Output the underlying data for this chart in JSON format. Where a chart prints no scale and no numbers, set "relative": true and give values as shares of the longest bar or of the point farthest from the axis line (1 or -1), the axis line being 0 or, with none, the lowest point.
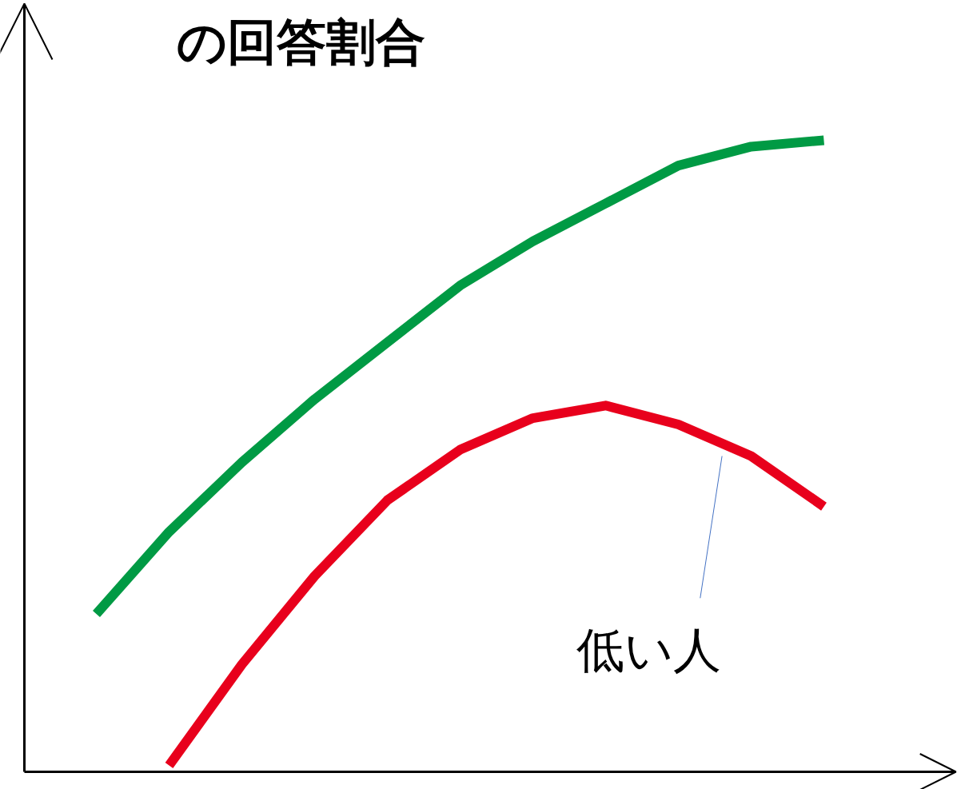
{
  "chart_data": {
    "type": "line",
    "title": "の回答割合",
    "relative": true,
    "categories": [
      null,
      null,
      null,
      null,
      null,
      null,
      null,
      null,
      null,
      null,
      null
    ],
    "series": [
      {
        "color": "#009a44",
        "values": [
          0.25,
          0.38,
          0.49,
          0.59,
          0.68,
          0.77,
          0.84,
          0.9,
          0.96,
          0.99,
          1
        ]
      },
      {
        "name": "低い人",
        "color": "#e8001c",
        "values": [
          null,
          0.01,
          0.17,
          0.31,
          0.43,
          0.51,
          0.56,
          0.58,
          0.55,
          0.5,
          0.42
        ]
      }
    ]
  }
}
